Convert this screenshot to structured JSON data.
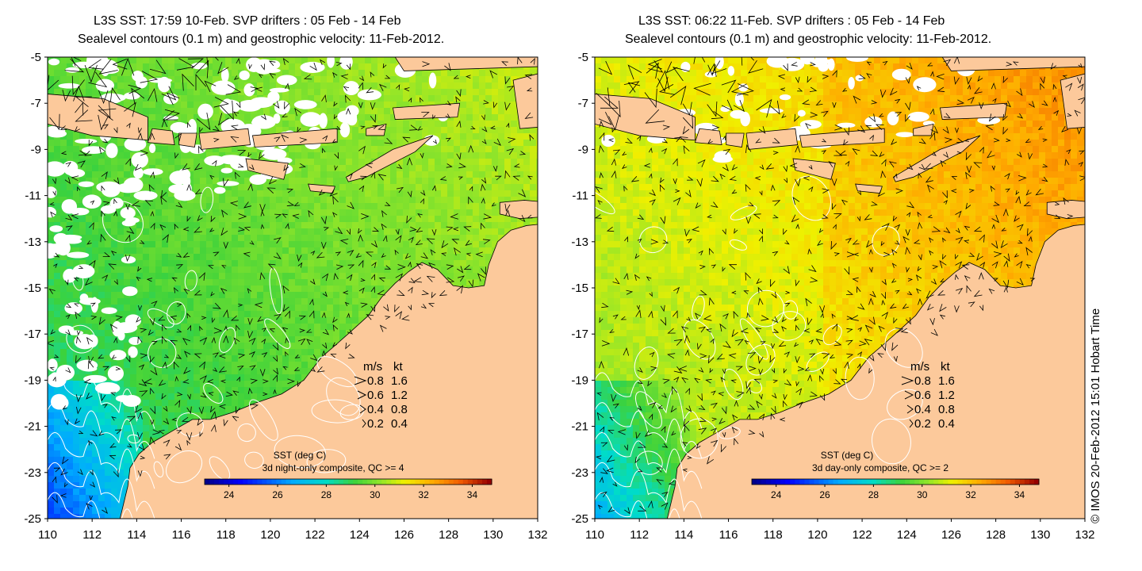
{
  "panels": [
    {
      "id": "left",
      "title_line1": "L3S SST: 17:59 10-Feb. SVP drifters : 05 Feb - 14 Feb",
      "title_line2": "Sealevel contours (0.1 m) and geostrophic velocity: 11-Feb-2012.",
      "colorbar_title": "SST (deg C)",
      "colorbar_subtitle": "3d night-only composite, QC >= 4",
      "sst_scheme": "cool"
    },
    {
      "id": "right",
      "title_line1": "L3S SST: 06:22 11-Feb. SVP drifters : 05 Feb - 14 Feb",
      "title_line2": "Sealevel contours (0.1 m) and geostrophic velocity: 11-Feb-2012.",
      "colorbar_title": "SST (deg C)",
      "colorbar_subtitle": "3d day-only composite, QC >= 2",
      "sst_scheme": "warm"
    }
  ],
  "axes": {
    "lat_ticks": [
      "-5",
      "-7",
      "-9",
      "-11",
      "-13",
      "-15",
      "-17",
      "-19",
      "-21",
      "-23",
      "-25"
    ],
    "lon_ticks": [
      "110",
      "112",
      "114",
      "116",
      "118",
      "120",
      "122",
      "124",
      "126",
      "128",
      "130",
      "132"
    ],
    "lon_range": [
      110,
      132
    ],
    "lat_range": [
      -25,
      -5
    ]
  },
  "velocity_legend": {
    "header_ms": "m/s",
    "header_kt": "kt",
    "rows": [
      {
        "ms": "0.8",
        "kt": "1.6"
      },
      {
        "ms": "0.6",
        "kt": "1.2"
      },
      {
        "ms": "0.4",
        "kt": "0.8"
      },
      {
        "ms": "0.2",
        "kt": "0.4"
      }
    ]
  },
  "colorbar": {
    "ticks": [
      "24",
      "26",
      "28",
      "30",
      "32",
      "34"
    ],
    "range": [
      23,
      34.8
    ]
  },
  "credit": "© IMOS 20-Feb-2012 15:01 Hobart Time",
  "colors": {
    "land": "#fcc99b",
    "cloud": "#ffffff",
    "contour": "#ffffff"
  }
}
